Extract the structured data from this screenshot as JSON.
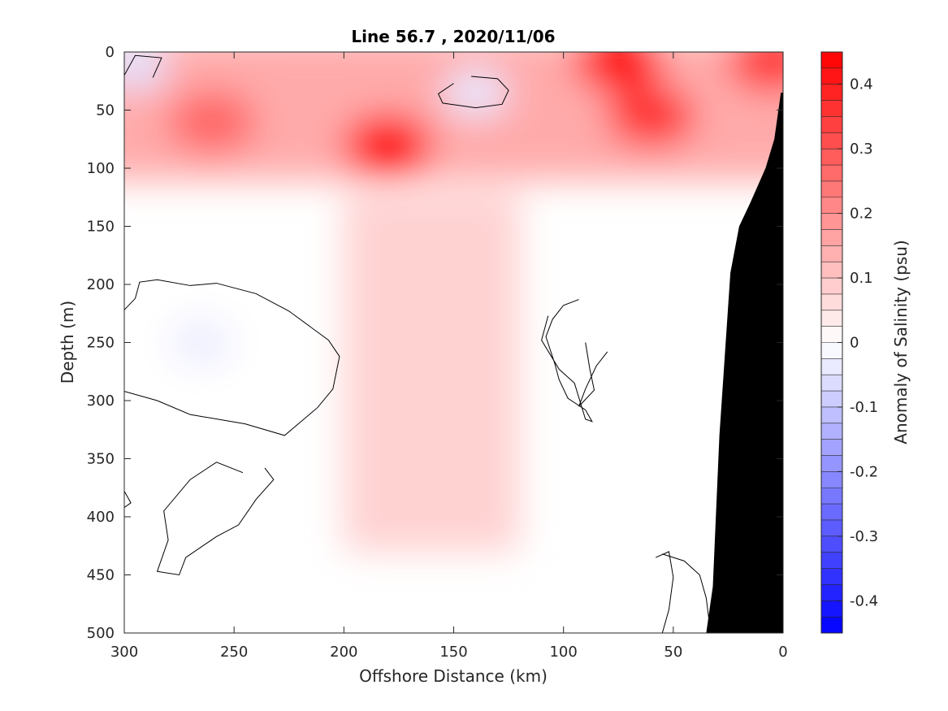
{
  "chart_data": {
    "type": "heatmap",
    "title": "Line 56.7 , 2020/11/06",
    "xlabel": "Offshore Distance (km)",
    "ylabel": "Depth (m)",
    "colorbar_label": "Anomaly of Salinity (psu)",
    "xlim": [
      300,
      0
    ],
    "ylim": [
      0,
      500
    ],
    "x_reversed": true,
    "y_reversed": true,
    "x_ticks": [
      300,
      250,
      200,
      150,
      100,
      50,
      0
    ],
    "y_ticks": [
      0,
      50,
      100,
      150,
      200,
      250,
      300,
      350,
      400,
      450,
      500
    ],
    "color_limits": [
      -0.45,
      0.45
    ],
    "colorbar_ticks": [
      0.4,
      0.3,
      0.2,
      0.1,
      0,
      -0.1,
      -0.2,
      -0.3,
      -0.4
    ],
    "colorbar_tick_labels": [
      "0.4",
      "0.3",
      "0.2",
      "0.1",
      "0",
      "-0.1",
      "-0.2",
      "-0.3",
      "-0.4"
    ],
    "levels": 36,
    "colors": {
      "positive": "#ff0000",
      "negative": "#0000ff",
      "zero": "#ffffff",
      "bathymetry": "#000000"
    },
    "features": [
      {
        "kind": "max",
        "x": 180,
        "depth": 80,
        "anomaly": 0.45
      },
      {
        "kind": "max",
        "x": 75,
        "depth": 8,
        "anomaly": 0.42
      },
      {
        "kind": "max",
        "x": 60,
        "depth": 55,
        "anomaly": 0.36
      },
      {
        "kind": "max",
        "x": 260,
        "depth": 60,
        "anomaly": 0.27
      },
      {
        "kind": "max",
        "x": 5,
        "depth": 8,
        "anomaly": 0.35
      },
      {
        "kind": "min",
        "x": 140,
        "depth": 35,
        "anomaly": -0.04
      },
      {
        "kind": "min",
        "x": 265,
        "depth": 250,
        "anomaly": -0.03
      },
      {
        "kind": "min",
        "x": 295,
        "depth": 12,
        "anomaly": -0.05
      }
    ],
    "zero_contours": [
      [
        [
          142,
          21
        ],
        [
          130,
          23
        ],
        [
          125,
          33
        ],
        [
          128,
          45
        ],
        [
          140,
          48
        ],
        [
          155,
          44
        ],
        [
          157,
          36
        ],
        [
          150,
          27
        ]
      ],
      [
        [
          300,
          20
        ],
        [
          295,
          3
        ],
        [
          283,
          5
        ],
        [
          287,
          22
        ]
      ],
      [
        [
          300,
          222
        ],
        [
          295,
          212
        ],
        [
          293,
          198
        ],
        [
          285,
          196
        ],
        [
          270,
          201
        ],
        [
          258,
          199
        ],
        [
          240,
          208
        ],
        [
          225,
          223
        ],
        [
          207,
          248
        ],
        [
          202,
          262
        ],
        [
          205,
          290
        ],
        [
          212,
          306
        ],
        [
          227,
          330
        ],
        [
          245,
          320
        ],
        [
          270,
          312
        ],
        [
          285,
          300
        ],
        [
          300,
          292
        ]
      ],
      [
        [
          93,
          213
        ],
        [
          100,
          218
        ],
        [
          105,
          230
        ],
        [
          108,
          245
        ],
        [
          104,
          268
        ],
        [
          102,
          282
        ],
        [
          98,
          298
        ],
        [
          90,
          308
        ],
        [
          87,
          318
        ],
        [
          90,
          316
        ],
        [
          95,
          285
        ],
        [
          102,
          273
        ],
        [
          110,
          248
        ],
        [
          107,
          227
        ]
      ],
      [
        [
          80,
          258
        ],
        [
          85,
          270
        ],
        [
          90,
          290
        ],
        [
          93,
          305
        ],
        [
          86,
          291
        ],
        [
          88,
          273
        ],
        [
          90,
          250
        ]
      ],
      [
        [
          236,
          358
        ],
        [
          232,
          368
        ],
        [
          240,
          385
        ],
        [
          248,
          407
        ],
        [
          258,
          417
        ],
        [
          272,
          435
        ],
        [
          275,
          450
        ],
        [
          285,
          447
        ],
        [
          280,
          420
        ],
        [
          282,
          395
        ],
        [
          270,
          368
        ],
        [
          258,
          353
        ],
        [
          246,
          362
        ]
      ],
      [
        [
          300,
          378
        ],
        [
          297,
          388
        ],
        [
          300,
          392
        ]
      ],
      [
        [
          58,
          435
        ],
        [
          52,
          430
        ],
        [
          50,
          452
        ],
        [
          52,
          480
        ],
        [
          55,
          500
        ],
        [
          33,
          500
        ],
        [
          35,
          470
        ],
        [
          38,
          450
        ],
        [
          45,
          438
        ],
        [
          55,
          432
        ]
      ]
    ],
    "bathymetry": [
      [
        35,
        500
      ],
      [
        32,
        460
      ],
      [
        29,
        330
      ],
      [
        24,
        190
      ],
      [
        20,
        150
      ],
      [
        15,
        130
      ],
      [
        8,
        100
      ],
      [
        4,
        75
      ],
      [
        1,
        35
      ],
      [
        0,
        35
      ]
    ]
  }
}
